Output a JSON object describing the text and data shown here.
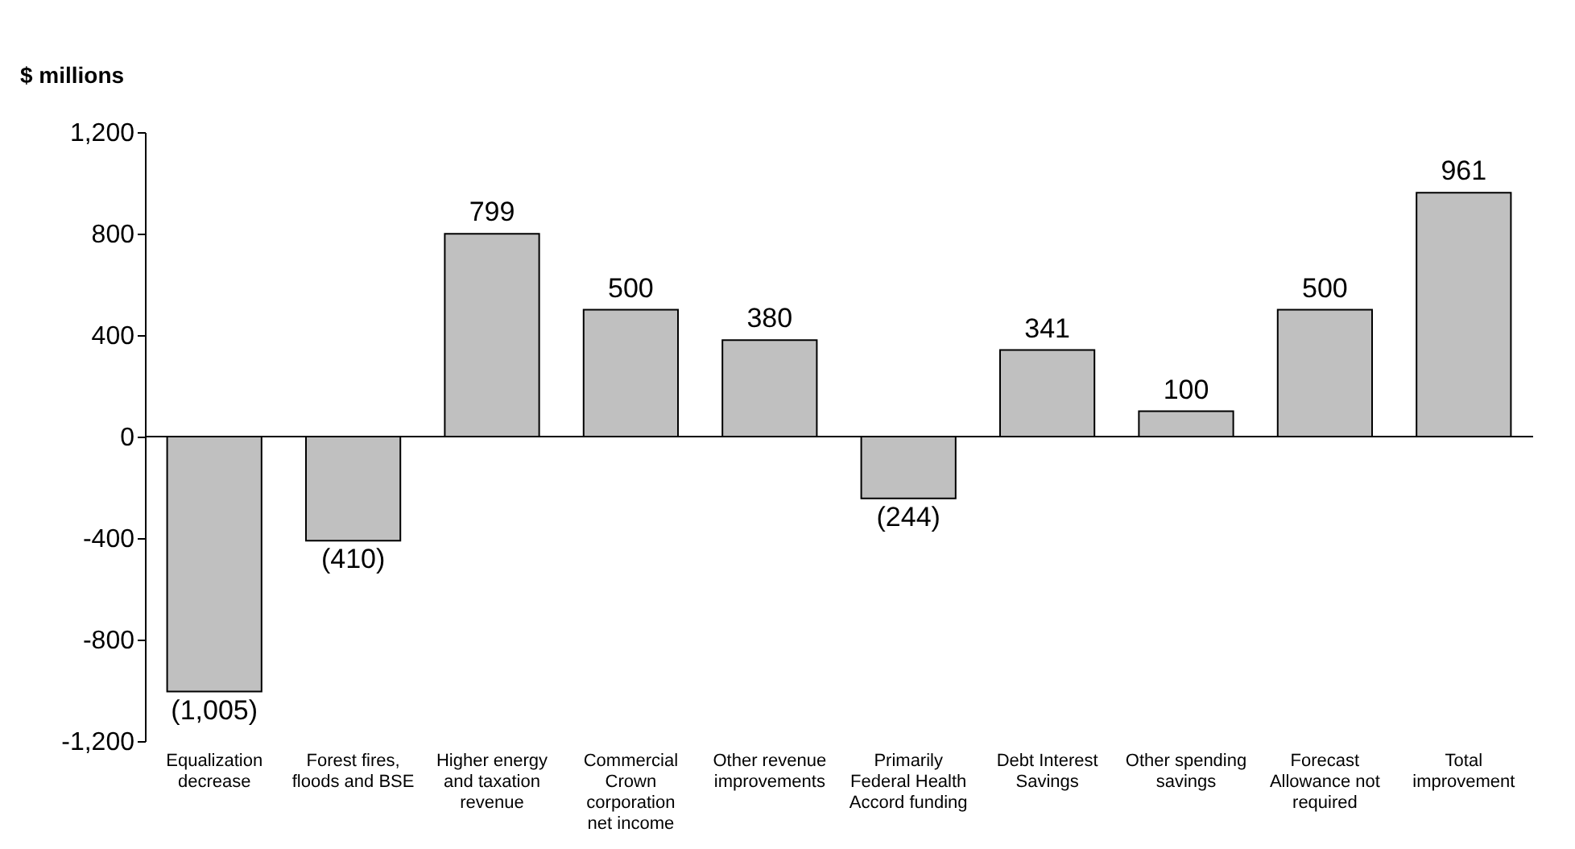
{
  "chart_data": {
    "type": "bar",
    "ylabel": "$ millions",
    "categories": [
      "Equalization decrease",
      "Forest fires, floods and BSE",
      "Higher energy and taxation revenue",
      "Commercial Crown corporation net income",
      "Other revenue improvements",
      "Primarily Federal Health Accord funding",
      "Debt Interest Savings",
      "Other spending savings",
      "Forecast Allowance not required",
      "Total improvement"
    ],
    "values": [
      -1005,
      -410,
      799,
      500,
      380,
      -244,
      341,
      100,
      500,
      961
    ],
    "value_labels": [
      "(1,005)",
      "(410)",
      "799",
      "500",
      "380",
      "(244)",
      "341",
      "100",
      "500",
      "961"
    ],
    "color": "#c0c0c0",
    "ylim": [
      -1200,
      1200
    ],
    "yticks": [
      {
        "value": 1200,
        "label": "1,200"
      },
      800,
      400,
      0,
      -400,
      -800,
      {
        "value": -1200,
        "label": "-1,200"
      }
    ]
  }
}
